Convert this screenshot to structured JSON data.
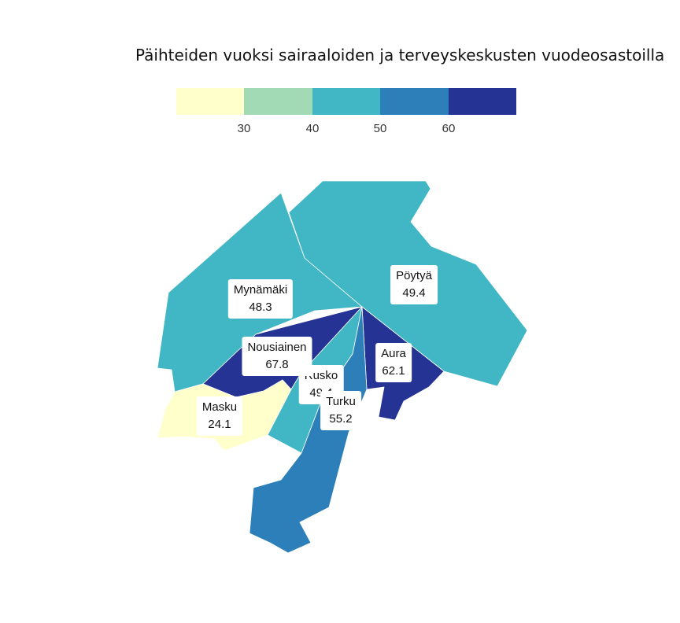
{
  "title": "Päihteiden vuoksi sairaaloiden ja terveyskeskusten vuodeosastoilla",
  "legend": {
    "ticks": [
      "30",
      "40",
      "50",
      "60"
    ],
    "colors": [
      "#ffffcc",
      "#a1dab4",
      "#41b6c4",
      "#2c7fb8",
      "#253494"
    ]
  },
  "municipalities": [
    {
      "name": "Mynämäki",
      "value": "48.3",
      "color": "#41b6c4"
    },
    {
      "name": "Pöytyä",
      "value": "49.4",
      "color": "#41b6c4"
    },
    {
      "name": "Nousiainen",
      "value": "67.8",
      "color": "#253494"
    },
    {
      "name": "Aura",
      "value": "62.1",
      "color": "#253494"
    },
    {
      "name": "Rusko",
      "value": "49.4",
      "color": "#41b6c4"
    },
    {
      "name": "Turku",
      "value": "55.2",
      "color": "#2c7fb8"
    },
    {
      "name": "Masku",
      "value": "24.1",
      "color": "#ffffcc"
    }
  ]
}
